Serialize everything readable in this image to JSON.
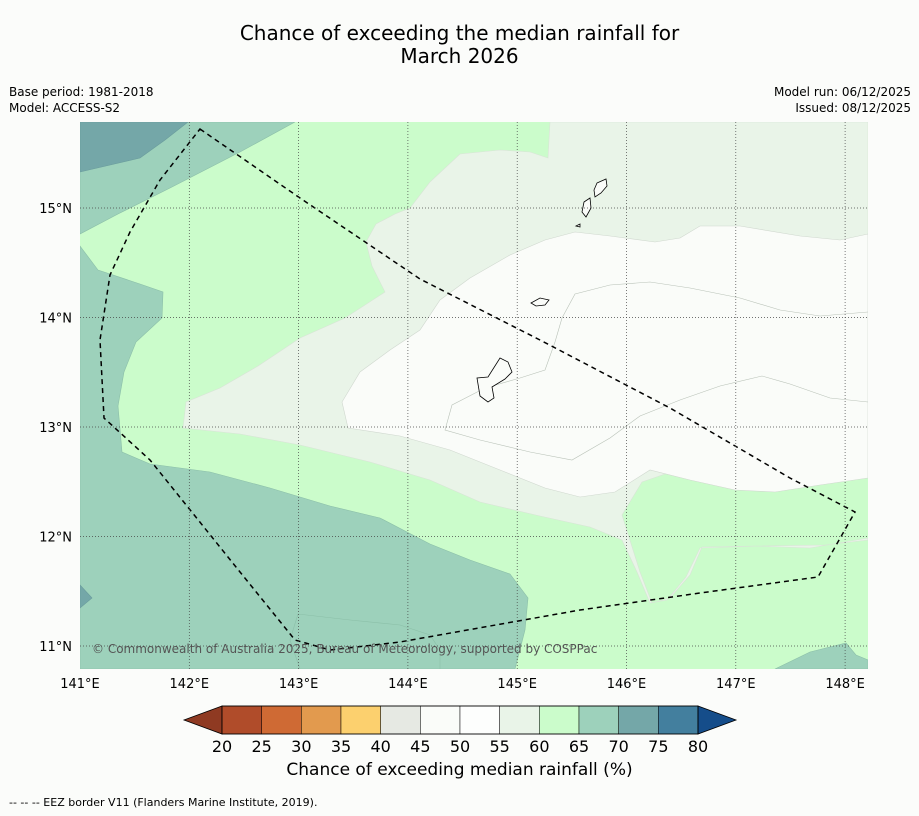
{
  "title_line1": "Chance of exceeding the median rainfall for",
  "title_line2": "March 2026",
  "base_period": "Base period: 1981-2018",
  "model": "Model: ACCESS-S2",
  "model_run": "Model run: 06/12/2025",
  "issued": "Issued: 08/12/2025",
  "copyright": "© Commonwealth of Australia 2025, Bureau of Meteorology, supported by COSPPac",
  "lon_labels": [
    "141°E",
    "142°E",
    "143°E",
    "144°E",
    "145°E",
    "146°E",
    "147°E",
    "148°E"
  ],
  "lat_labels": [
    "15°N",
    "14°N",
    "13°N",
    "12°N",
    "11°N"
  ],
  "lon_values": [
    141,
    142,
    143,
    144,
    145,
    146,
    147,
    148
  ],
  "lat_values": [
    15,
    14,
    13,
    12,
    11
  ],
  "colorbar": {
    "title": "Chance of exceeding median rainfall (%)",
    "ticks": [
      "20",
      "25",
      "30",
      "35",
      "40",
      "45",
      "50",
      "55",
      "60",
      "65",
      "70",
      "75",
      "80"
    ],
    "colors": [
      "#8f3a22",
      "#b04c2a",
      "#cf6a34",
      "#e29a4e",
      "#fcd06e",
      "#e6e9e3",
      "#fafcf9",
      "#fdfefd",
      "#e9f4e8",
      "#cbfccb",
      "#9dd1bb",
      "#74a7a8",
      "#437f9e",
      "#154d8a"
    ]
  },
  "legend_note": "--  --  -- EEZ border V11 (Flanders Marine Institute, 2019)."
}
